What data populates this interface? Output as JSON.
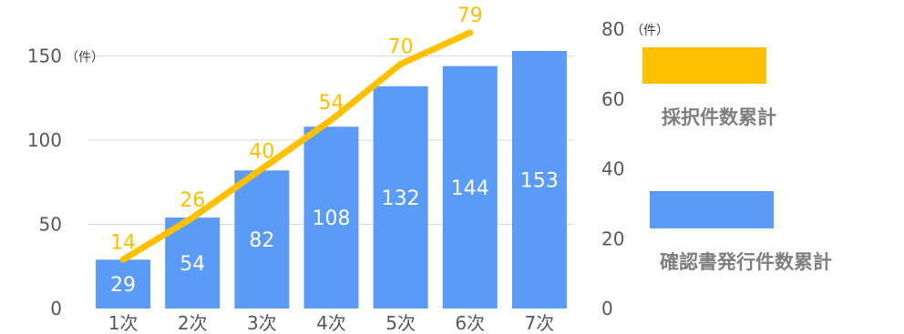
{
  "chart_data": {
    "type": "bar+line",
    "categories": [
      "1次",
      "2次",
      "3次",
      "4次",
      "5次",
      "6次",
      "7次"
    ],
    "series": [
      {
        "name": "確認書発行件数累計",
        "type": "bar",
        "axis": "left",
        "values": [
          29,
          54,
          82,
          108,
          132,
          144,
          153
        ],
        "color": "#5B9BF8"
      },
      {
        "name": "採択件数累計",
        "type": "line",
        "axis": "right",
        "values": [
          14,
          26,
          40,
          54,
          70,
          79,
          null
        ],
        "color": "#FFC000"
      }
    ],
    "y_left": {
      "min": 0,
      "max": 150,
      "ticks": [
        0,
        50,
        100,
        150
      ],
      "unit": "（件）"
    },
    "y_right": {
      "min": 0,
      "max": 80,
      "ticks": [
        0,
        20,
        40,
        60,
        80
      ],
      "unit": "（件）"
    },
    "grid": true,
    "legend": "right"
  }
}
